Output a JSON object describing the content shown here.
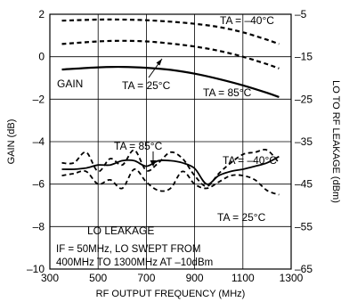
{
  "chart_data": {
    "type": "line",
    "xlabel": "RF OUTPUT FREQUENCY (MHz)",
    "ylabel": "GAIN (dB)",
    "y2label": "LO TO RF LEAKAGE (dBm)",
    "xlim": [
      300,
      1300
    ],
    "ylim": [
      -10,
      2
    ],
    "y2lim": [
      -65,
      -5
    ],
    "x_ticks": [
      300,
      500,
      700,
      900,
      1100,
      1300
    ],
    "y_ticks": [
      2,
      0,
      -2,
      -4,
      -6,
      -8,
      -10
    ],
    "y2_ticks": [
      -5,
      -15,
      -25,
      -35,
      -45,
      -55,
      -65
    ],
    "grid": true,
    "series": [
      {
        "name": "GAIN TA = -40°C",
        "axis": "left",
        "style": "dashed",
        "x": [
          350,
          500,
          600,
          700,
          800,
          900,
          1000,
          1100,
          1200,
          1250
        ],
        "y": [
          1.7,
          1.75,
          1.75,
          1.72,
          1.65,
          1.55,
          1.4,
          1.15,
          0.8,
          0.6
        ]
      },
      {
        "name": "GAIN TA = 25°C",
        "axis": "left",
        "style": "dashed",
        "x": [
          350,
          500,
          600,
          700,
          800,
          900,
          1000,
          1100,
          1200,
          1250
        ],
        "y": [
          0.6,
          0.72,
          0.75,
          0.72,
          0.62,
          0.48,
          0.28,
          0.0,
          -0.35,
          -0.55
        ]
      },
      {
        "name": "GAIN TA = 85°C",
        "axis": "left",
        "style": "solid",
        "x": [
          350,
          500,
          600,
          700,
          800,
          900,
          1000,
          1100,
          1200,
          1250
        ],
        "y": [
          -0.6,
          -0.5,
          -0.48,
          -0.52,
          -0.62,
          -0.8,
          -1.05,
          -1.35,
          -1.7,
          -1.9
        ]
      },
      {
        "name": "LO LEAKAGE TA = 85°C",
        "axis": "right",
        "style": "solid",
        "x": [
          350,
          400,
          450,
          500,
          550,
          600,
          650,
          700,
          750,
          800,
          850,
          900,
          950,
          1000,
          1050,
          1100,
          1150,
          1200,
          1250
        ],
        "y": [
          -41.5,
          -41.5,
          -41.2,
          -40.5,
          -40.5,
          -39.5,
          -39.5,
          -40.8,
          -39.5,
          -39.5,
          -40,
          -41.3,
          -45,
          -43,
          -42,
          -41.5,
          -40.8,
          -40,
          -38.5
        ]
      },
      {
        "name": "LO LEAKAGE TA = -40°C",
        "axis": "right",
        "style": "dashed",
        "x": [
          350,
          400,
          450,
          500,
          550,
          600,
          650,
          700,
          750,
          800,
          850,
          900,
          950,
          1000,
          1050,
          1100,
          1150,
          1200,
          1250
        ],
        "y": [
          -40,
          -40,
          -37.5,
          -42,
          -39,
          -40.5,
          -37,
          -41.8,
          -40,
          -37.5,
          -39,
          -43,
          -45.5,
          -42.5,
          -40,
          -38,
          -37.5,
          -37,
          -40
        ]
      },
      {
        "name": "LO LEAKAGE TA = 25°C",
        "axis": "right",
        "style": "dashed",
        "x": [
          350,
          400,
          450,
          500,
          550,
          600,
          650,
          700,
          750,
          800,
          850,
          900,
          950,
          1000,
          1050,
          1100,
          1150,
          1200,
          1250
        ],
        "y": [
          -43,
          -42.5,
          -42,
          -45,
          -44,
          -46,
          -41.5,
          -44.5,
          -46.5,
          -46,
          -42,
          -45,
          -46,
          -44.5,
          -43,
          -43,
          -44,
          -46.5,
          -47.5
        ]
      }
    ],
    "annotations": {
      "ta_m40_top": "TA = –40°C",
      "ta_25_gain": "TA = 25°C",
      "ta_85_gain": "TA = 85°C",
      "gain_label": "GAIN",
      "ta_85_leak": "TA = 85°C",
      "ta_m40_leak": "TA = –40°C",
      "ta_25_leak": "TA = 25°C",
      "lo_leakage_label": "LO LEAKAGE",
      "note_line1": "IF = 50MHz, LO SWEPT FROM",
      "note_line2": "400MHz TO 1300MHz AT –10dBm"
    }
  }
}
